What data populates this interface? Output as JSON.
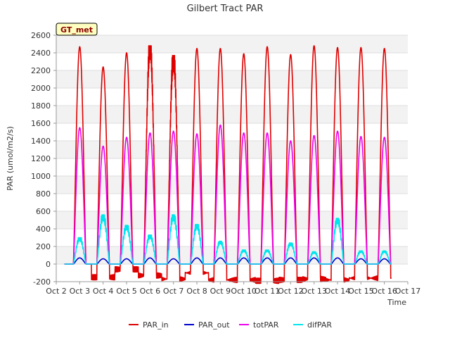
{
  "chart_data": {
    "type": "line",
    "title": "Gilbert Tract PAR",
    "xlabel": "Time",
    "ylabel": "PAR (umol/m2/s)",
    "badge": "GT_met",
    "xlim": [
      2,
      17
    ],
    "ylim": [
      -200,
      2600
    ],
    "x_ticks": [
      {
        "v": 2,
        "label": "Oct 2"
      },
      {
        "v": 3,
        "label": "Oct 3"
      },
      {
        "v": 4,
        "label": "Oct 4"
      },
      {
        "v": 5,
        "label": "Oct 5"
      },
      {
        "v": 6,
        "label": "Oct 6"
      },
      {
        "v": 7,
        "label": "Oct 7"
      },
      {
        "v": 8,
        "label": "Oct 8"
      },
      {
        "v": 9,
        "label": "Oct 9"
      },
      {
        "v": 10,
        "label": "Oct 10"
      },
      {
        "v": 11,
        "label": "Oct 11"
      },
      {
        "v": 12,
        "label": "Oct 12"
      },
      {
        "v": 13,
        "label": "Oct 13"
      },
      {
        "v": 14,
        "label": "Oct 14"
      },
      {
        "v": 15,
        "label": "Oct 15"
      },
      {
        "v": 16,
        "label": "Oct 16"
      },
      {
        "v": 17,
        "label": "Oct 17"
      }
    ],
    "y_ticks": [
      {
        "v": -200,
        "label": "-200"
      },
      {
        "v": 0,
        "label": "0"
      },
      {
        "v": 200,
        "label": "200"
      },
      {
        "v": 400,
        "label": "400"
      },
      {
        "v": 600,
        "label": "600"
      },
      {
        "v": 800,
        "label": "800"
      },
      {
        "v": 1000,
        "label": "1000"
      },
      {
        "v": 1200,
        "label": "1200"
      },
      {
        "v": 1400,
        "label": "1400"
      },
      {
        "v": 1600,
        "label": "1600"
      },
      {
        "v": 1800,
        "label": "1800"
      },
      {
        "v": 2000,
        "label": "2000"
      },
      {
        "v": 2200,
        "label": "2200"
      },
      {
        "v": 2400,
        "label": "2400"
      },
      {
        "v": 2600,
        "label": "2600"
      }
    ],
    "grid": true,
    "legend_position": "bottom",
    "series": [
      {
        "name": "PAR_in",
        "color": "#dd0000",
        "peaks": [
          2470,
          2240,
          2400,
          2480,
          2370,
          2450,
          2450,
          2390,
          2470,
          2380,
          2480,
          2460,
          2460,
          2450
        ],
        "night": [
          0,
          -150,
          -60,
          -130,
          -170,
          -100,
          -180,
          -180,
          -190,
          -180,
          -170,
          -180,
          -160,
          -160
        ]
      },
      {
        "name": "PAR_out",
        "color": "#0000cc",
        "peaks": [
          70,
          60,
          60,
          70,
          60,
          70,
          70,
          70,
          70,
          70,
          70,
          70,
          60,
          60
        ],
        "night": [
          0,
          0,
          0,
          0,
          0,
          0,
          0,
          0,
          0,
          0,
          0,
          0,
          0,
          0
        ]
      },
      {
        "name": "totPAR",
        "color": "#ee00ee",
        "peaks": [
          1550,
          1340,
          1440,
          1490,
          1510,
          1480,
          1580,
          1490,
          1490,
          1400,
          1460,
          1510,
          1450,
          1440
        ],
        "night": [
          0,
          0,
          0,
          0,
          0,
          0,
          0,
          0,
          0,
          0,
          0,
          0,
          0,
          0
        ]
      },
      {
        "name": "difPAR",
        "color": "#00e5ee",
        "peaks": [
          300,
          560,
          440,
          330,
          560,
          450,
          260,
          160,
          160,
          240,
          140,
          520,
          150,
          150
        ],
        "night": [
          0,
          0,
          0,
          0,
          0,
          0,
          0,
          0,
          0,
          0,
          0,
          0,
          0,
          0
        ]
      }
    ],
    "day_centers": [
      3.0,
      4.0,
      5.0,
      6.0,
      7.0,
      8.0,
      9.0,
      10.0,
      11.0,
      12.0,
      13.0,
      14.0,
      15.0,
      16.0
    ],
    "series_x_range": [
      2.35,
      16.3
    ]
  }
}
